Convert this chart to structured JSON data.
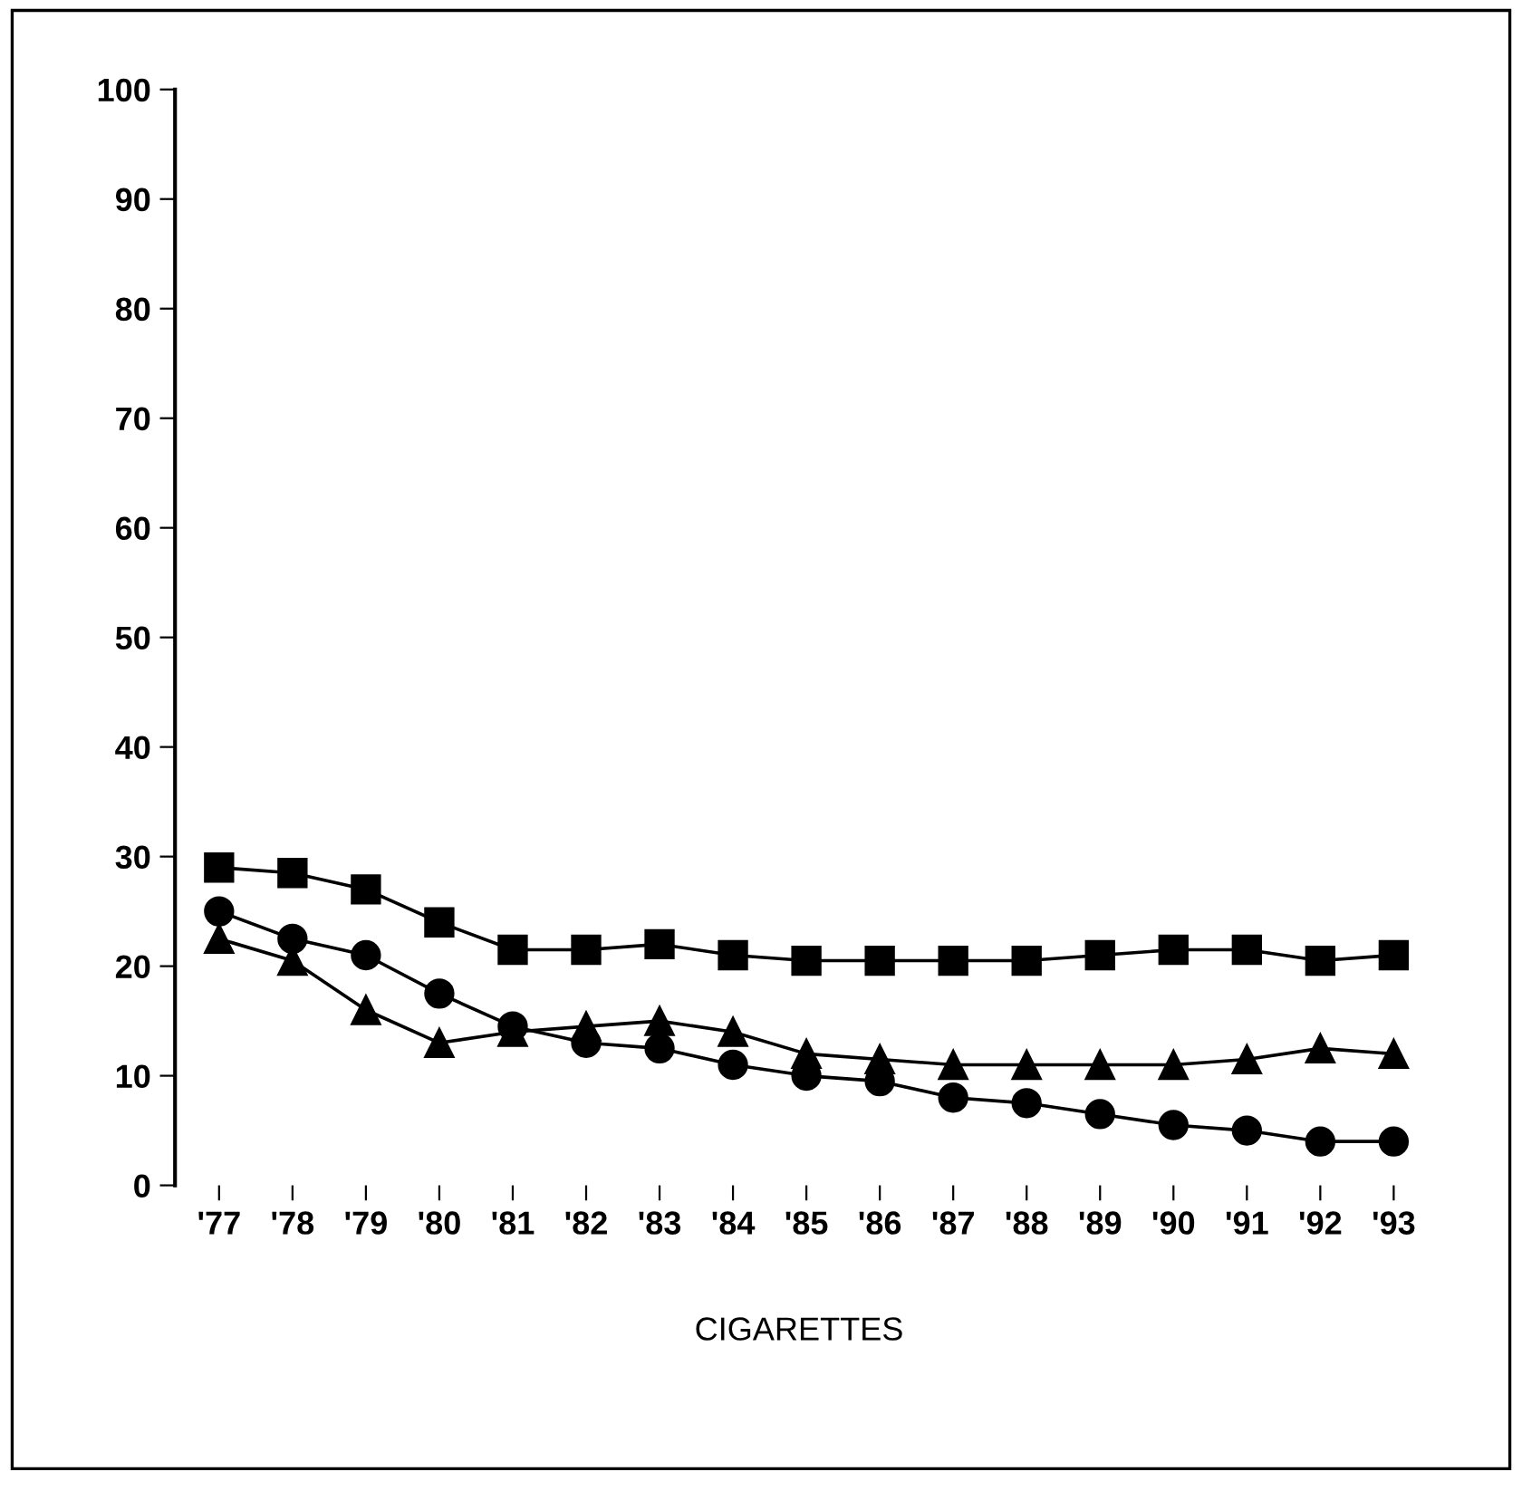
{
  "chart_data": {
    "type": "line",
    "xlabel": "CIGARETTES",
    "categories": [
      "'77",
      "'78",
      "'79",
      "'80",
      "'81",
      "'82",
      "'83",
      "'84",
      "'85",
      "'86",
      "'87",
      "'88",
      "'89",
      "'90",
      "'91",
      "'92",
      "'93"
    ],
    "series": [
      {
        "color": "#000000",
        "marker": "square",
        "values": [
          29,
          28.5,
          27,
          24,
          21.5,
          21.5,
          22,
          21,
          20.5,
          20.5,
          20.5,
          20.5,
          21,
          21.5,
          21.5,
          20.5,
          21
        ]
      },
      {
        "color": "#000000",
        "marker": "circle",
        "values": [
          25,
          22.5,
          21,
          17.5,
          14.5,
          13,
          12.5,
          11,
          10,
          9.5,
          8,
          7.5,
          6.5,
          5.5,
          5,
          4,
          4
        ]
      },
      {
        "color": "#000000",
        "marker": "triangle",
        "values": [
          22.5,
          20.5,
          16,
          13,
          14,
          14.5,
          15,
          14,
          12,
          11.5,
          11,
          11,
          11,
          11,
          11.5,
          12.5,
          12
        ]
      }
    ],
    "ylim": [
      0,
      100
    ],
    "yticks": [
      0,
      10,
      20,
      30,
      40,
      50,
      60,
      70,
      80,
      90,
      100
    ],
    "grid": false,
    "legend": false,
    "line_style": "solid"
  }
}
